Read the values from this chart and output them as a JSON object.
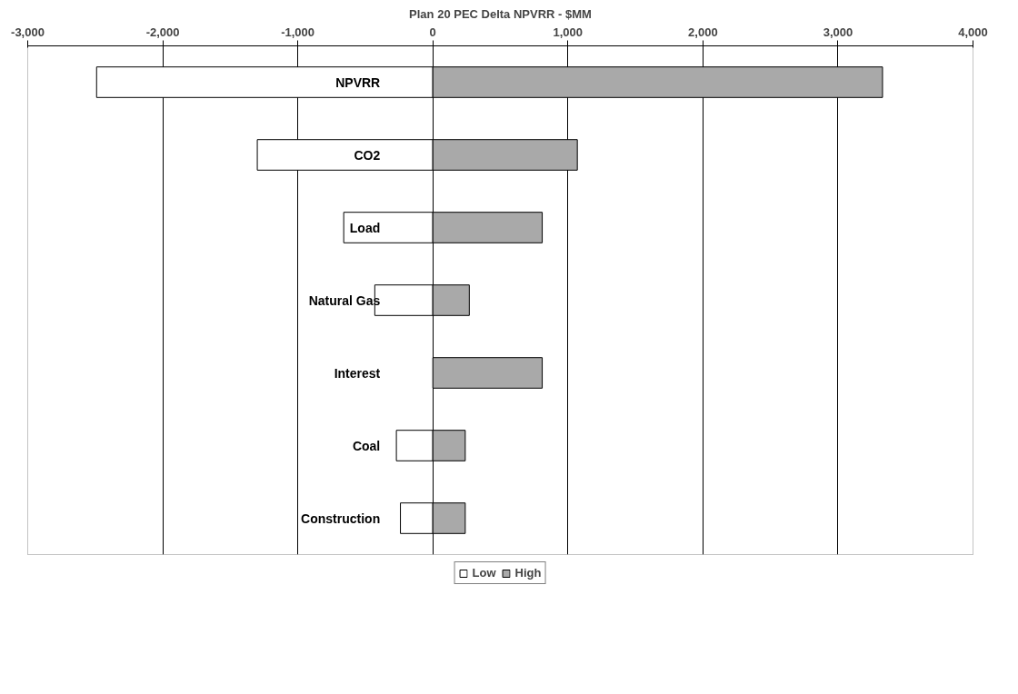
{
  "chart_data": {
    "type": "bar",
    "orientation": "horizontal",
    "stacked": true,
    "title": "Plan 20 PEC Delta NPVRR - $MM",
    "categories": [
      "NPVRR",
      "CO2",
      "Load",
      "Natural Gas",
      "Interest",
      "Coal",
      "Construction"
    ],
    "series": [
      {
        "name": "Low",
        "color": "#ffffff",
        "values": [
          -2490,
          -1300,
          -660,
          -430,
          null,
          -270,
          -240
        ]
      },
      {
        "name": "High",
        "color": "#a9a9a9",
        "values": [
          3330,
          1070,
          810,
          270,
          810,
          240,
          240
        ]
      }
    ],
    "xlim": [
      -3000,
      4000
    ],
    "xticks": [
      {
        "value": -3000,
        "label": "-3,000"
      },
      {
        "value": -2000,
        "label": "-2,000"
      },
      {
        "value": -1000,
        "label": "-1,000"
      },
      0,
      {
        "value": 1000,
        "label": "1,000"
      },
      {
        "value": 2000,
        "label": "2,000"
      },
      {
        "value": 3000,
        "label": "3,000"
      },
      {
        "value": 4000,
        "label": "4,000"
      }
    ],
    "grid": "x",
    "legend": "bottom"
  }
}
